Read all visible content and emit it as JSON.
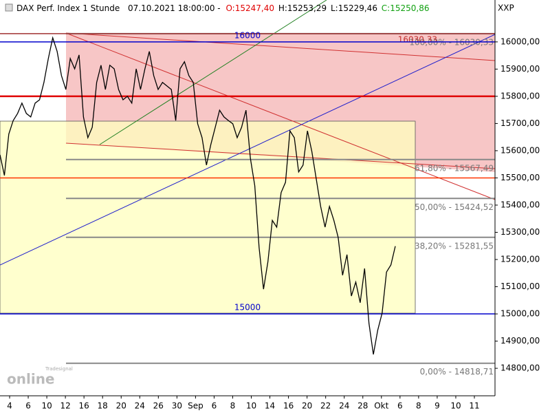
{
  "header": {
    "title": "DAX Perf. Index 1 Stunde",
    "datetime": "07.10.2021 18:00:00 -",
    "open": "O:15247,40",
    "high": "H:15253,29",
    "low": "L:15229,46",
    "close": "C:15250,86",
    "corner": "XXP",
    "logo_small": "Tradesignal",
    "logo": "online"
  },
  "chart_data": {
    "type": "line",
    "color": "#000000",
    "values": [
      15585,
      15509,
      15661,
      15711,
      15737,
      15775,
      15737,
      15724,
      15775,
      15787,
      15851,
      15939,
      16015,
      15965,
      15876,
      15825,
      15939,
      15901,
      15952,
      15724,
      15648,
      15686,
      15851,
      15914,
      15825,
      15914,
      15901,
      15825,
      15787,
      15800,
      15775,
      15901,
      15825,
      15901,
      15965,
      15876,
      15825,
      15851,
      15838,
      15825,
      15711,
      15901,
      15927,
      15876,
      15851,
      15699,
      15648,
      15547,
      15623,
      15686,
      15749,
      15724,
      15711,
      15699,
      15648,
      15686,
      15749,
      15572,
      15471,
      15243,
      15091,
      15192,
      15344,
      15319,
      15446,
      15484,
      15673,
      15648,
      15522,
      15547,
      15673,
      15597,
      15496,
      15395,
      15319,
      15395,
      15344,
      15281,
      15142,
      15218,
      15066,
      15117,
      15041,
      15167,
      14965,
      14851,
      14940,
      15003,
      15154,
      15180,
      15249
    ],
    "ylim": [
      14699,
      16154
    ],
    "yticks": [
      {
        "value": 14800,
        "label": "14800,00"
      },
      {
        "value": 14900,
        "label": "14900,00"
      },
      {
        "value": 15000,
        "label": "15000,00"
      },
      {
        "value": 15100,
        "label": "15100,00"
      },
      {
        "value": 15200,
        "label": "15200,00"
      },
      {
        "value": 15300,
        "label": "15300,00"
      },
      {
        "value": 15400,
        "label": "15400,00"
      },
      {
        "value": 15500,
        "label": "15500,00"
      },
      {
        "value": 15600,
        "label": "15600,00"
      },
      {
        "value": 15700,
        "label": "15700,00"
      },
      {
        "value": 15800,
        "label": "15800,00"
      },
      {
        "value": 15900,
        "label": "15900,00"
      },
      {
        "value": 16000,
        "label": "16000,00"
      }
    ],
    "xtick_labels": [
      "4",
      "6",
      "10",
      "12",
      "16",
      "18",
      "20",
      "24",
      "26",
      "30",
      "Sep",
      "6",
      "8",
      "10",
      "14",
      "16",
      "20",
      "22",
      "24",
      "28",
      "Okt",
      "6",
      "8",
      "9",
      "10",
      "11"
    ],
    "levels": [
      {
        "value": 16000,
        "label": "16000",
        "color": "#0000cc"
      },
      {
        "value": 15000,
        "label": "15000",
        "color": "#0000cc"
      }
    ],
    "lines": [
      {
        "value": 15800,
        "color": "#e00000"
      },
      {
        "value": 15500,
        "color": "#ff3300"
      },
      {
        "value": 16030.33,
        "color": "#a03030"
      }
    ],
    "fib": [
      {
        "value": 14818.71,
        "label": "0,00% - 14818,71"
      },
      {
        "value": 15281.55,
        "label": "38,20% - 15281,55"
      },
      {
        "value": 15424.52,
        "label": "50,00% - 15424,52"
      },
      {
        "value": 15567.49,
        "label": "61,80% - 15567,49"
      },
      {
        "value": 16030.33,
        "label": "100,00% - 16030,33"
      }
    ],
    "fib_high_label": "16030,33"
  }
}
